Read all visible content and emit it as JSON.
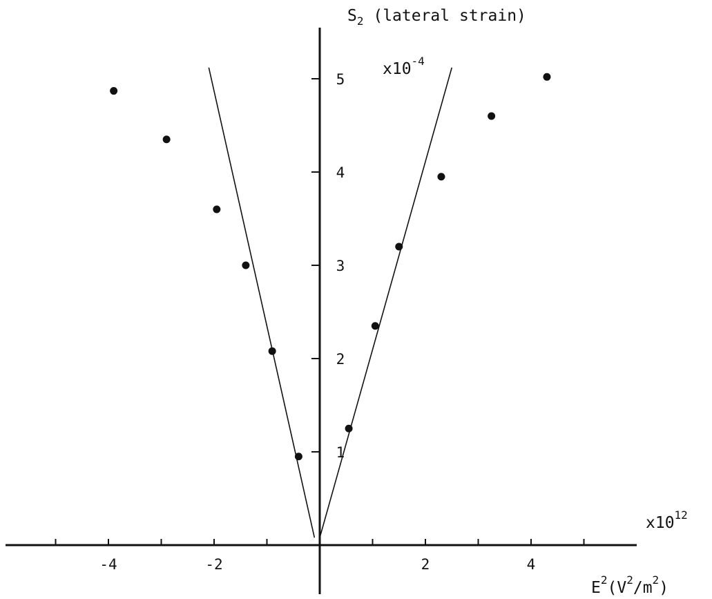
{
  "chart_data": {
    "type": "scatter",
    "title": "",
    "ylabel_text": "S",
    "ylabel_sub": "2",
    "ylabel_rest": " (lateral strain)",
    "y_multiplier_base": "x10",
    "y_multiplier_exp": "-4",
    "x_multiplier_base": "x10",
    "x_multiplier_exp": "12",
    "xlabel_parts": [
      "E",
      "2",
      "(V",
      "2",
      "/m",
      "2",
      ")"
    ],
    "xlim": [
      -6,
      6
    ],
    "ylim": [
      0,
      5.5
    ],
    "x_ticks": [
      -5,
      -4,
      -3,
      -2,
      -1,
      1,
      2,
      3,
      4,
      5
    ],
    "x_tick_labels": [
      {
        "value": -4,
        "label": "-4"
      },
      {
        "value": -2,
        "label": "-2"
      },
      {
        "value": 2,
        "label": "2"
      },
      {
        "value": 4,
        "label": "4"
      }
    ],
    "y_tick_labels": [
      {
        "value": 1,
        "label": "1"
      },
      {
        "value": 2,
        "label": "2"
      },
      {
        "value": 3,
        "label": "3"
      },
      {
        "value": 4,
        "label": "4"
      },
      {
        "value": 5,
        "label": "5"
      }
    ],
    "points": [
      {
        "x": -3.9,
        "y": 4.87
      },
      {
        "x": -2.9,
        "y": 4.35
      },
      {
        "x": -1.95,
        "y": 3.6
      },
      {
        "x": -1.4,
        "y": 3.0
      },
      {
        "x": -0.9,
        "y": 2.08
      },
      {
        "x": -0.4,
        "y": 0.95
      },
      {
        "x": 0.55,
        "y": 1.25
      },
      {
        "x": 1.05,
        "y": 2.35
      },
      {
        "x": 1.5,
        "y": 3.2
      },
      {
        "x": 2.3,
        "y": 3.95
      },
      {
        "x": 3.25,
        "y": 4.6
      },
      {
        "x": 4.3,
        "y": 5.02
      }
    ],
    "fit_lines": [
      {
        "x1": -0.1,
        "y1": 0.08,
        "x2": -2.1,
        "y2": 5.12
      },
      {
        "x1": 0.0,
        "y1": 0.08,
        "x2": 2.5,
        "y2": 5.12
      }
    ],
    "grid": false,
    "legend": "none"
  }
}
